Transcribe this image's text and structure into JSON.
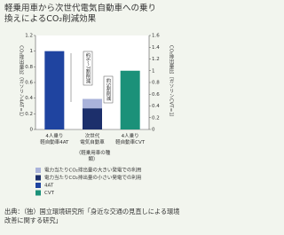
{
  "chart_data": {
    "type": "bar",
    "title": "軽乗用車から次世代電気自動車への乗り\n換えによるCO₂削減効果",
    "y_label": "CO₂排出量比（ガソリン4AT=1）",
    "y2_label": "CO₂排出量比（ガソリンCVT=1）",
    "x_label": "（軽乗用車の種類）",
    "categories": [
      "4人乗り\n軽自動車4AT",
      "次世代\n電気自動車",
      "4人乗り\n軽自動車CVT"
    ],
    "series": [
      {
        "name": "電力当たりCO₂排出量の小さい発電での利用",
        "color": "#1c2f6b",
        "values": [
          null,
          0.27,
          null
        ]
      },
      {
        "name": "電力当たりCO₂排出量の大きい発電での利用",
        "color": "#aab3da",
        "values": [
          null,
          0.12,
          null
        ]
      },
      {
        "name": "4AT",
        "color": "#1f44a0",
        "values": [
          1,
          null,
          null
        ]
      },
      {
        "name": "CVT",
        "color": "#1b9179",
        "values": [
          null,
          null,
          1
        ],
        "axis": "y2"
      }
    ],
    "legend_order": [
      1,
      0,
      2,
      3
    ],
    "annotations": [
      "約6～7割削減",
      "約5割削減"
    ],
    "ylim": [
      0,
      1.2
    ],
    "yticks": [
      0,
      0.2,
      0.4,
      0.6,
      0.8,
      1,
      1.2
    ],
    "y2lim": [
      0,
      1.6
    ],
    "y2ticks": [
      0,
      0.2,
      0.4,
      0.6,
      0.8,
      1,
      1.2,
      1.4,
      1.6
    ]
  },
  "source": "出典：（独）国立環境研究所「身近な交通の見直しによる環境改善に関する研究」"
}
